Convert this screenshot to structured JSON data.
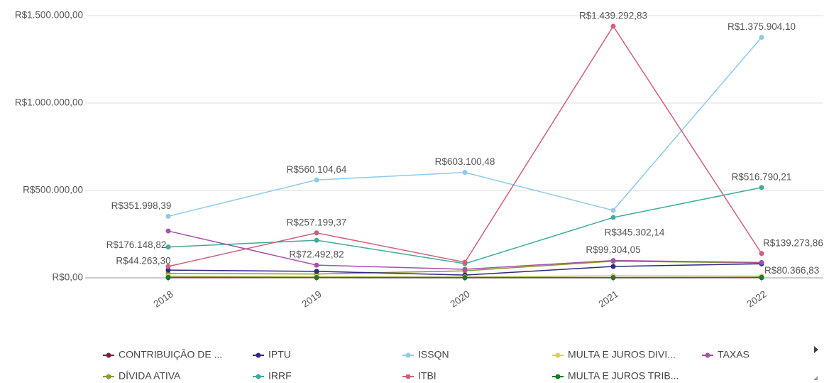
{
  "chart_data": {
    "type": "line",
    "categories": [
      "2018",
      "2019",
      "2020",
      "2021",
      "2022"
    ],
    "ylim": [
      0,
      1500000
    ],
    "yticks": [
      {
        "value": 0,
        "label": "R$0,00"
      },
      {
        "value": 500000,
        "label": "R$500.000,00"
      },
      {
        "value": 1000000,
        "label": "R$1.000.000,00"
      },
      {
        "value": 1500000,
        "label": "R$1.500.000,00"
      }
    ],
    "grid": true,
    "legend": "bottom",
    "series": [
      {
        "name": "CONTRIBUIÇÃO DE ...",
        "color": "#7a1f45",
        "values": [
          1000,
          800,
          600,
          700,
          900
        ]
      },
      {
        "name": "DÍVIDA ATIVA",
        "color": "#8c9a2e",
        "values": [
          25000,
          22000,
          40000,
          95000,
          85000
        ]
      },
      {
        "name": "IPTU",
        "color": "#2c2a86",
        "values": [
          44263.3,
          37000,
          16000,
          65000,
          80366.83
        ],
        "value_labels": [
          "R$44.263,30",
          null,
          null,
          null,
          "R$80.366,83"
        ]
      },
      {
        "name": "IRRF",
        "color": "#3eab9b",
        "values": [
          176148.82,
          215000,
          81000,
          345302.14,
          516790.21
        ],
        "value_labels": [
          "R$176.148,82",
          null,
          null,
          "R$345.302,14",
          "R$516.790,21"
        ]
      },
      {
        "name": "ISSQN",
        "color": "#8ccbea",
        "values": [
          351998.39,
          560104.64,
          603100.48,
          386000,
          1375904.1
        ],
        "value_labels": [
          "R$351.998,39",
          "R$560.104,64",
          "R$603.100,48",
          null,
          "R$1.375.904,10"
        ]
      },
      {
        "name": "ITBI",
        "color": "#d0607a",
        "values": [
          65000,
          257199.37,
          89000,
          1439292.83,
          139273.86
        ],
        "value_labels": [
          null,
          "R$257.199,37",
          null,
          "R$1.439.292,83",
          "R$139.273,86"
        ]
      },
      {
        "name": "MULTA E JUROS DIVI...",
        "color": "#dccb66",
        "values": [
          10000,
          8000,
          5000,
          12000,
          10000
        ]
      },
      {
        "name": "MULTA E JUROS TRIB...",
        "color": "#1b7a2e",
        "values": [
          3000,
          2000,
          2000,
          2000,
          3000
        ]
      },
      {
        "name": "TAXAS",
        "color": "#a552a8",
        "values": [
          268000,
          72492.82,
          49000,
          99304.05,
          88000
        ],
        "value_labels": [
          null,
          "R$72.492,82",
          null,
          "R$99.304,05",
          null
        ]
      }
    ]
  }
}
